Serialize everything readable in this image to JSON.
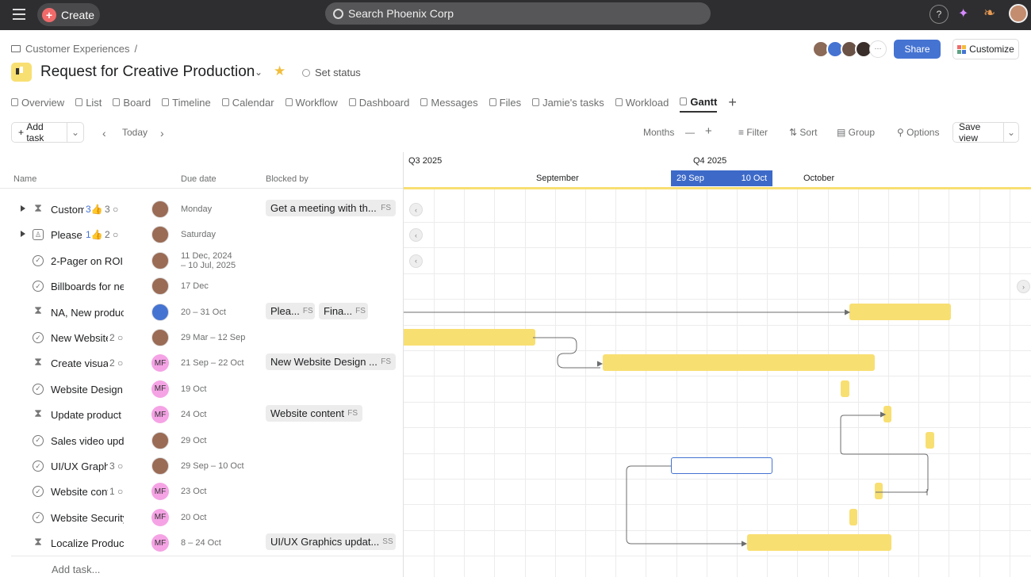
{
  "topbar": {
    "create": "Create",
    "search": "Search Phoenix Corp",
    "help": "?"
  },
  "breadcrumb": "Customer Experiences",
  "breadcrumb_sep": "/",
  "project": {
    "title": "Request for Creative Production",
    "set_status": "Set status"
  },
  "tabs": [
    {
      "label": "Overview"
    },
    {
      "label": "List"
    },
    {
      "label": "Board"
    },
    {
      "label": "Timeline"
    },
    {
      "label": "Calendar"
    },
    {
      "label": "Workflow"
    },
    {
      "label": "Dashboard"
    },
    {
      "label": "Messages"
    },
    {
      "label": "Files"
    },
    {
      "label": "Jamie's tasks"
    },
    {
      "label": "Workload"
    },
    {
      "label": "Gantt",
      "active": true
    }
  ],
  "header_actions": {
    "share": "Share",
    "customize": "Customize",
    "more": "···"
  },
  "toolbar": {
    "add_task": "Add task",
    "today": "Today",
    "months": "Months",
    "minus": "—",
    "plus": "+",
    "filter": "Filter",
    "sort": "Sort",
    "group": "Group",
    "options": "Options",
    "save_view": "Save view"
  },
  "columns": {
    "name": "Name",
    "due": "Due date",
    "blocked": "Blocked by"
  },
  "tasks": [
    {
      "name": "Customer",
      "icon": "hourglass",
      "expand": true,
      "likes": "3",
      "comments": "3",
      "assignee": "photo",
      "due": "Monday",
      "blocked": [
        {
          "label": "Get a meeting with th...",
          "type": "FS"
        }
      ]
    },
    {
      "name": "Please",
      "icon": "approval",
      "expand": true,
      "likes": "1",
      "comments": "2",
      "assignee": "photo",
      "due": "Saturday",
      "blocked": []
    },
    {
      "name": "2-Pager on ROI",
      "icon": "check",
      "assignee": "photo",
      "due": "11 Dec, 2024",
      "due2": "– 10 Jul, 2025",
      "blocked": []
    },
    {
      "name": "Billboards for new",
      "icon": "check",
      "assignee": "photo",
      "due": "17 Dec",
      "blocked": []
    },
    {
      "name": "NA, New product",
      "icon": "hourglass",
      "assignee": "blue",
      "due": "20 – 31 Oct",
      "blocked": [
        {
          "label": "Plea...",
          "type": "FS"
        },
        {
          "label": "Fina...",
          "type": "FS"
        }
      ],
      "bar": [
        "2025-10-20",
        "2025-10-31"
      ]
    },
    {
      "name": "New Website",
      "icon": "check",
      "comments": "2",
      "assignee": "photo",
      "due": "29 Mar – 12 Sep",
      "blocked": [],
      "bar": [
        "2025-03-29",
        "2025-09-12"
      ]
    },
    {
      "name": "Create visual",
      "icon": "hourglass",
      "comments": "2",
      "assignee": "MF",
      "due": "21 Sep – 22 Oct",
      "blocked": [
        {
          "label": "New Website Design ...",
          "type": "FS"
        }
      ],
      "bar": [
        "2025-09-21",
        "2025-10-22"
      ]
    },
    {
      "name": "Website Design",
      "icon": "check",
      "assignee": "MF",
      "due": "19 Oct",
      "blocked": [],
      "bar": [
        "2025-10-19",
        "2025-10-19"
      ]
    },
    {
      "name": "Update product",
      "icon": "hourglass",
      "assignee": "MF",
      "due": "24 Oct",
      "blocked": [
        {
          "label": "Website content",
          "type": "FS"
        }
      ],
      "bar": [
        "2025-10-24",
        "2025-10-24"
      ]
    },
    {
      "name": "Sales video update",
      "icon": "check",
      "assignee": "photo",
      "due": "29 Oct",
      "blocked": [],
      "bar": [
        "2025-10-29",
        "2025-10-29"
      ]
    },
    {
      "name": "UI/UX Graphics",
      "icon": "check",
      "comments": "3",
      "assignee": "photo",
      "due": "29 Sep – 10 Oct",
      "blocked": [],
      "bar": [
        "2025-09-29",
        "2025-10-10"
      ],
      "selected": true
    },
    {
      "name": "Website content",
      "icon": "check",
      "comments": "1",
      "assignee": "MF",
      "due": "23 Oct",
      "blocked": [],
      "bar": [
        "2025-10-23",
        "2025-10-23"
      ]
    },
    {
      "name": "Website Security",
      "icon": "check",
      "assignee": "MF",
      "due": "20 Oct",
      "blocked": [],
      "bar": [
        "2025-10-20",
        "2025-10-20"
      ]
    },
    {
      "name": "Localize Product",
      "icon": "hourglass",
      "assignee": "MF",
      "due": "8 – 24 Oct",
      "blocked": [
        {
          "label": "UI/UX Graphics updat...",
          "type": "SS"
        }
      ],
      "bar": [
        "2025-10-08",
        "2025-10-24"
      ]
    }
  ],
  "add_task_row": "Add task...",
  "gantt": {
    "q3": "Q3 2025",
    "q4": "Q4 2025",
    "september": "September",
    "october": "October",
    "range_start": "29 Sep",
    "range_end": "10 Oct"
  },
  "colors": {
    "bar": "#f8df72",
    "accent": "#4573d2",
    "mf_avatar": "#f5a3e5"
  }
}
